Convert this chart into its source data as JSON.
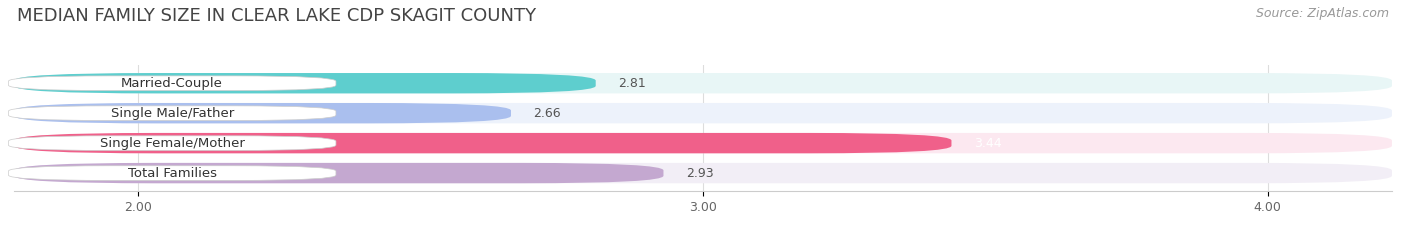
{
  "title": "MEDIAN FAMILY SIZE IN CLEAR LAKE CDP SKAGIT COUNTY",
  "source": "Source: ZipAtlas.com",
  "categories": [
    "Married-Couple",
    "Single Male/Father",
    "Single Female/Mother",
    "Total Families"
  ],
  "values": [
    2.81,
    2.66,
    3.44,
    2.93
  ],
  "bar_colors": [
    "#5ecece",
    "#aabfee",
    "#f0608a",
    "#c4a8d0"
  ],
  "bar_bg_colors": [
    "#e8f6f6",
    "#edf2fb",
    "#fce8f0",
    "#f2eef6"
  ],
  "value_colors": [
    "#555555",
    "#555555",
    "#ffffff",
    "#555555"
  ],
  "xlim_min": 1.78,
  "xlim_max": 4.22,
  "xticks": [
    2.0,
    3.0,
    4.0
  ],
  "xtick_labels": [
    "2.00",
    "3.00",
    "4.00"
  ],
  "title_fontsize": 13,
  "source_fontsize": 9,
  "label_fontsize": 9.5,
  "value_fontsize": 9,
  "background_color": "#ffffff",
  "grid_color": "#dddddd",
  "bar_height": 0.68,
  "bar_gap": 0.32
}
